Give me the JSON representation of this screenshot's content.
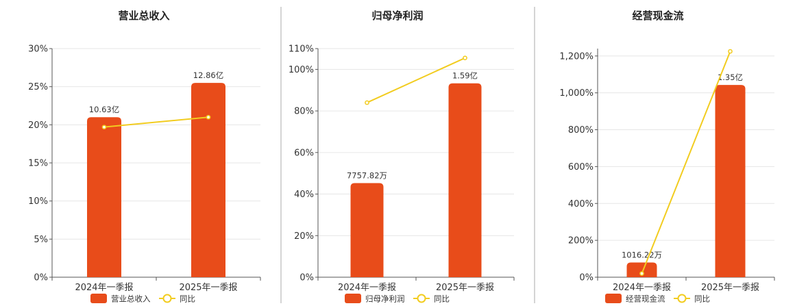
{
  "legend_line_label": "同比",
  "chart_data": [
    {
      "type": "bar",
      "title": "营业总收入",
      "categories": [
        "2024年一季报",
        "2025年一季报"
      ],
      "series": [
        {
          "name": "营业总收入",
          "kind": "bar",
          "axis": "percent",
          "values": [
            21,
            25.5
          ],
          "data_labels": [
            "10.63亿",
            "12.86亿"
          ],
          "color": "#e84c1a"
        },
        {
          "name": "同比",
          "kind": "line",
          "axis": "percent",
          "values": [
            19.7,
            21.0
          ],
          "color": "#f2cc1f"
        }
      ],
      "y_ticks": [
        "0%",
        "5%",
        "10%",
        "15%",
        "20%",
        "25%",
        "30%"
      ],
      "ylim": [
        0,
        30
      ],
      "grid": true,
      "legend_position": "bottom"
    },
    {
      "type": "bar",
      "title": "归母净利润",
      "categories": [
        "2024年一季报",
        "2025年一季报"
      ],
      "series": [
        {
          "name": "归母净利润",
          "kind": "bar",
          "axis": "percent",
          "values": [
            45.3,
            93.3
          ],
          "data_labels": [
            "7757.82万",
            "1.59亿"
          ],
          "color": "#e84c1a"
        },
        {
          "name": "同比",
          "kind": "line",
          "axis": "percent",
          "values": [
            84,
            105.5
          ],
          "color": "#f2cc1f"
        }
      ],
      "y_ticks": [
        "0%",
        "20%",
        "40%",
        "60%",
        "80%",
        "100%",
        "110%"
      ],
      "ylim": [
        0,
        110
      ],
      "grid": true,
      "legend_position": "bottom"
    },
    {
      "type": "bar",
      "title": "经营现金流",
      "categories": [
        "2024年一季报",
        "2025年一季报"
      ],
      "series": [
        {
          "name": "经营现金流",
          "kind": "bar",
          "axis": "percent",
          "values": [
            80,
            1043
          ],
          "data_labels": [
            "1016.22万",
            "1.35亿"
          ],
          "color": "#e84c1a"
        },
        {
          "name": "同比",
          "kind": "line",
          "axis": "percent",
          "values": [
            20,
            1225
          ],
          "color": "#f2cc1f"
        }
      ],
      "y_ticks": [
        "0%",
        "200%",
        "400%",
        "600%",
        "800%",
        "1,000%",
        "1,200%"
      ],
      "ylim": [
        0,
        1240
      ],
      "grid": true,
      "legend_position": "bottom"
    }
  ]
}
